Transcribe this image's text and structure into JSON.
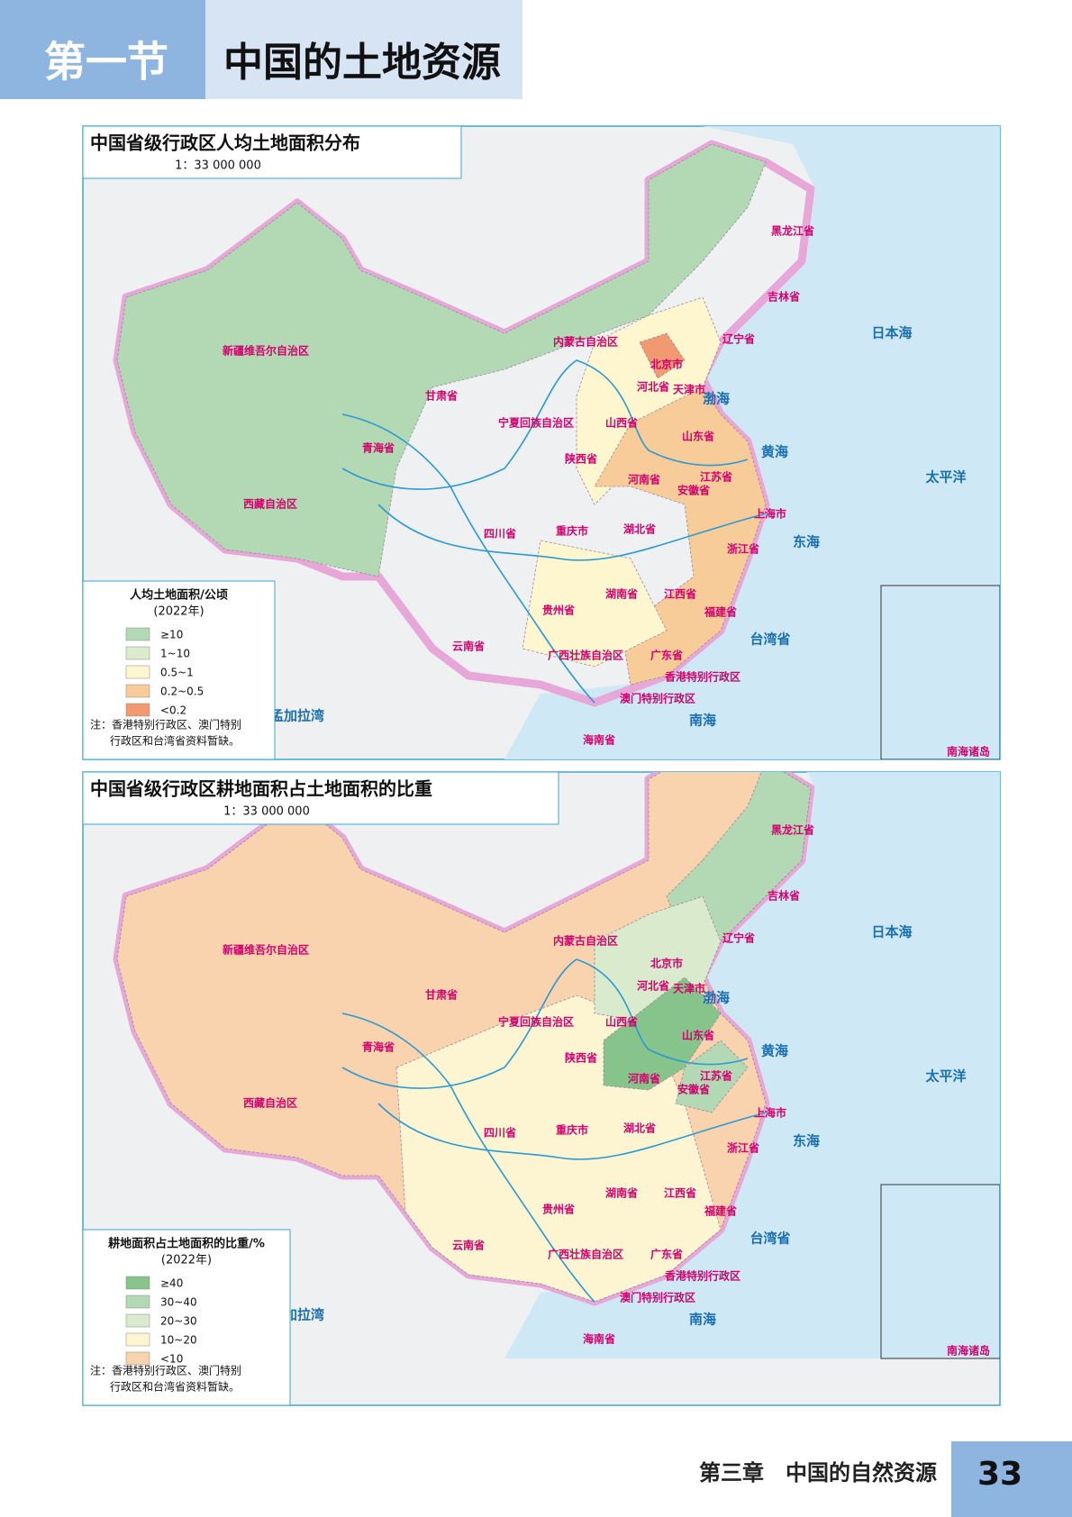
{
  "header": {
    "section": "第一节",
    "title": "中国的土地资源"
  },
  "maps": [
    {
      "title": "中国省级行政区人均土地面积分布",
      "scale": "1：33 000 000",
      "legend": {
        "title": "人均土地面积/公顷",
        "year": "(2022年)",
        "items": [
          {
            "label": "≥10",
            "color": "#b3d9b4"
          },
          {
            "label": "1~10",
            "color": "#dcebcc"
          },
          {
            "label": "0.5~1",
            "color": "#fdf6cf"
          },
          {
            "label": "0.2~0.5",
            "color": "#f8cc98"
          },
          {
            "label": "<0.2",
            "color": "#f19a72"
          }
        ]
      },
      "note": [
        "注：香港特别行政区、澳门特别",
        "行政区和台湾省资料暂缺。"
      ],
      "labels": [
        "新疆维吾尔自治区",
        "西藏自治区",
        "青海省",
        "甘肃省",
        "内蒙古自治区",
        "四川省",
        "云南省",
        "贵州省",
        "广西壮族自治区",
        "广东省",
        "海南省",
        "湖南省",
        "湖北省",
        "江西省",
        "福建省",
        "浙江省",
        "上海市",
        "江苏省",
        "安徽省",
        "河南省",
        "山东省",
        "山西省",
        "陕西省",
        "宁夏回族自治区",
        "重庆市",
        "河北省",
        "北京市",
        "天津市",
        "辽宁省",
        "吉林省",
        "黑龙江省",
        "台湾省",
        "香港特别行政区",
        "澳门特别行政区",
        "日本海",
        "黄海",
        "东海",
        "南海",
        "渤海",
        "太平洋",
        "孟加拉湾",
        "南海诸岛"
      ]
    },
    {
      "title": "中国省级行政区耕地面积占土地面积的比重",
      "scale": "1：33 000 000",
      "legend": {
        "title": "耕地面积占土地面积的比重/%",
        "year": "(2022年)",
        "items": [
          {
            "label": "≥40",
            "color": "#86c48c"
          },
          {
            "label": "30~40",
            "color": "#b3d9b4"
          },
          {
            "label": "20~30",
            "color": "#d9ebcc"
          },
          {
            "label": "10~20",
            "color": "#fdf5d2"
          },
          {
            "label": "<10",
            "color": "#f9d2ae"
          }
        ]
      },
      "note": [
        "注：香港特别行政区、澳门特别",
        "行政区和台湾省资料暂缺。"
      ],
      "labels": [
        "新疆维吾尔自治区",
        "西藏自治区",
        "青海省",
        "甘肃省",
        "内蒙古自治区",
        "四川省",
        "云南省",
        "贵州省",
        "广西壮族自治区",
        "广东省",
        "海南省",
        "湖南省",
        "湖北省",
        "江西省",
        "福建省",
        "浙江省",
        "上海市",
        "江苏省",
        "安徽省",
        "河南省",
        "山东省",
        "山西省",
        "陕西省",
        "宁夏回族自治区",
        "重庆市",
        "河北省",
        "北京市",
        "天津市",
        "辽宁省",
        "吉林省",
        "黑龙江省",
        "台湾省",
        "香港特别行政区",
        "澳门特别行政区",
        "日本海",
        "黄海",
        "东海",
        "南海",
        "渤海",
        "太平洋",
        "孟加拉湾",
        "南海诸岛"
      ]
    }
  ],
  "footer": {
    "chapter": "第三章　中国的自然资源",
    "page": "33"
  }
}
